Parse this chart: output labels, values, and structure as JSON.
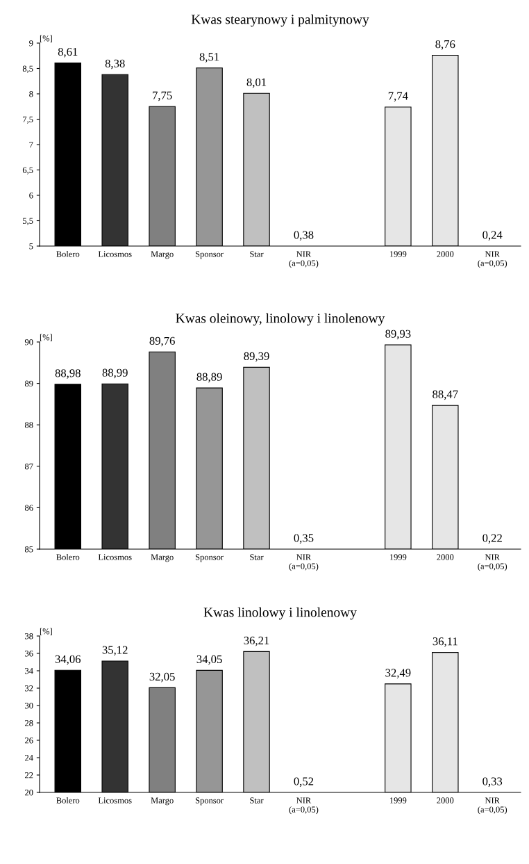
{
  "chart_data": [
    {
      "type": "bar",
      "title": "Kwas stearynowy i palmitynowy",
      "ylabel": "[%]",
      "categories": [
        "Bolero",
        "Licosmos",
        "Margo",
        "Sponsor",
        "Star",
        "NIR\n(a=0,05)",
        null,
        "1999",
        "2000",
        "NIR\n(a=0,05)"
      ],
      "values": [
        8.61,
        8.38,
        7.75,
        8.51,
        8.01,
        null,
        null,
        7.74,
        8.76,
        null
      ],
      "value_labels": [
        "8,61",
        "8,38",
        "7,75",
        "8,51",
        "8,01",
        "0,38",
        null,
        "7,74",
        "8,76",
        "0,24"
      ],
      "colors": [
        "#000000",
        "#333333",
        "#808080",
        "#969696",
        "#c0c0c0",
        "#ffffff",
        "#ffffff",
        "#e6e6e6",
        "#e6e6e6",
        "#ffffff"
      ],
      "ylim": [
        5,
        9
      ],
      "yticks": [
        5,
        {
          "value": 5.5,
          "label": "5,5"
        },
        6,
        {
          "value": 6.5,
          "label": "6,5"
        },
        7,
        {
          "value": 7.5,
          "label": "7,5"
        },
        8,
        {
          "value": 8.5,
          "label": "8,5"
        },
        9
      ],
      "grid": false,
      "legend": false
    },
    {
      "type": "bar",
      "title": "Kwas oleinowy, linolowy i linolenowy",
      "ylabel": "[%]",
      "categories": [
        "Bolero",
        "Licosmos",
        "Margo",
        "Sponsor",
        "Star",
        "NIR\n(a=0,05)",
        null,
        "1999",
        "2000",
        "NIR\n(a=0,05)"
      ],
      "values": [
        88.98,
        88.99,
        89.76,
        88.89,
        89.39,
        null,
        null,
        89.93,
        88.47,
        null
      ],
      "value_labels": [
        "88,98",
        "88,99",
        "89,76",
        "88,89",
        "89,39",
        "0,35",
        null,
        "89,93",
        "88,47",
        "0,22"
      ],
      "colors": [
        "#000000",
        "#333333",
        "#808080",
        "#969696",
        "#c0c0c0",
        "#ffffff",
        "#ffffff",
        "#e6e6e6",
        "#e6e6e6",
        "#ffffff"
      ],
      "ylim": [
        85,
        90
      ],
      "yticks": [
        85,
        86,
        87,
        88,
        89,
        90
      ],
      "grid": false,
      "legend": false
    },
    {
      "type": "bar",
      "title": "Kwas linolowy i linolenowy",
      "ylabel": "[%]",
      "categories": [
        "Bolero",
        "Licosmos",
        "Margo",
        "Sponsor",
        "Star",
        "NIR\n(a=0,05)",
        null,
        "1999",
        "2000",
        "NIR\n(a=0,05)"
      ],
      "values": [
        34.06,
        35.12,
        32.05,
        34.05,
        36.21,
        null,
        null,
        32.49,
        36.11,
        null
      ],
      "value_labels": [
        "34,06",
        "35,12",
        "32,05",
        "34,05",
        "36,21",
        "0,52",
        null,
        "32,49",
        "36,11",
        "0,33"
      ],
      "colors": [
        "#000000",
        "#333333",
        "#808080",
        "#969696",
        "#c0c0c0",
        "#ffffff",
        "#ffffff",
        "#e6e6e6",
        "#e6e6e6",
        "#ffffff"
      ],
      "ylim": [
        20,
        38
      ],
      "yticks": [
        20,
        22,
        24,
        26,
        28,
        30,
        32,
        34,
        36,
        38
      ],
      "grid": false,
      "legend": false
    }
  ]
}
